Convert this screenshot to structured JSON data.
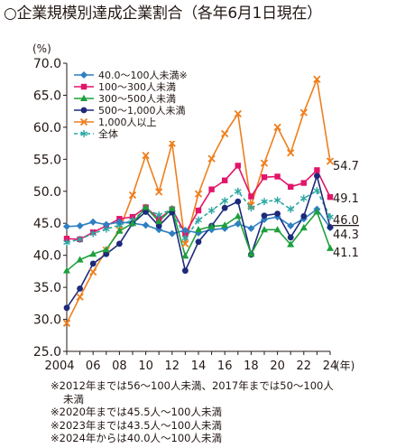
{
  "page_title": "○企業規模別達成企業割合（各年6月1日現在）",
  "notes": [
    "※2012年までは56～100人未満、2017年までは50～100人",
    "未満",
    "※2020年までは45.5人～100人未満",
    "※2023年までは43.5人～100人未満",
    "※2024年からは40.0人～100人未満"
  ],
  "chart_data": {
    "type": "line",
    "ylabel": "(%)",
    "xlabel_unit": "(年)",
    "ylim": [
      25.0,
      70.0
    ],
    "yticks": [
      "25.0",
      "30.0",
      "35.0",
      "40.0",
      "45.0",
      "50.0",
      "55.0",
      "60.0",
      "65.0",
      "70.0"
    ],
    "x": [
      2004,
      2005,
      2006,
      2007,
      2008,
      2009,
      2010,
      2011,
      2012,
      2013,
      2014,
      2015,
      2016,
      2017,
      2018,
      2019,
      2020,
      2021,
      2022,
      2023,
      2024
    ],
    "xtick_labels": [
      "2004",
      "06",
      "08",
      "10",
      "12",
      "14",
      "16",
      "18",
      "20",
      "22",
      "24"
    ],
    "series": [
      {
        "name": "40.0～100人未満※",
        "marker": "diamond",
        "color": "#2E7FC2",
        "values": [
          44.5,
          44.6,
          45.2,
          44.8,
          45.2,
          45.0,
          44.7,
          44.0,
          43.4,
          43.9,
          43.5,
          44.0,
          44.2,
          44.9,
          44.2,
          45.6,
          46.0,
          44.6,
          45.7,
          47.2,
          44.3
        ]
      },
      {
        "name": "100～300人未満",
        "marker": "square",
        "color": "#E3156A",
        "values": [
          42.6,
          42.5,
          43.6,
          44.6,
          45.7,
          46.0,
          47.5,
          45.7,
          47.2,
          43.4,
          47.0,
          50.3,
          51.7,
          54.0,
          49.2,
          52.2,
          52.3,
          50.7,
          51.3,
          53.3,
          49.1
        ]
      },
      {
        "name": "300～500人未満",
        "marker": "triangle",
        "color": "#1EA03C",
        "values": [
          37.6,
          39.3,
          40.2,
          40.9,
          43.8,
          45.0,
          47.5,
          45.3,
          47.3,
          39.9,
          44.0,
          44.5,
          44.7,
          46.1,
          40.2,
          44.0,
          44.0,
          41.7,
          44.3,
          46.8,
          41.1
        ]
      },
      {
        "name": "500～1,000人未満",
        "marker": "circle",
        "color": "#1D2A7A",
        "values": [
          31.8,
          34.8,
          38.7,
          40.2,
          41.8,
          45.0,
          46.8,
          44.6,
          46.7,
          37.6,
          42.1,
          44.6,
          47.4,
          48.4,
          40.1,
          46.2,
          46.5,
          42.8,
          46.1,
          52.4,
          44.4
        ]
      },
      {
        "name": "1,000人以上",
        "marker": "x",
        "color": "#EE7F1D",
        "values": [
          29.4,
          33.5,
          37.4,
          40.8,
          44.0,
          49.4,
          55.6,
          49.9,
          57.5,
          41.8,
          49.6,
          55.1,
          59.0,
          62.1,
          47.8,
          54.4,
          60.0,
          56.0,
          62.3,
          67.5,
          54.7
        ]
      },
      {
        "name": "全体",
        "marker": "asterisk",
        "color": "#2BA7A3",
        "dashed": true,
        "values": [
          42.0,
          42.5,
          43.4,
          44.1,
          44.7,
          45.5,
          47.2,
          46.3,
          47.2,
          42.7,
          45.5,
          47.0,
          48.5,
          50.0,
          47.4,
          48.4,
          48.6,
          47.2,
          48.9,
          50.1,
          46.0
        ]
      }
    ],
    "end_labels": [
      "54.7",
      "49.1",
      "46.0",
      "44.3",
      "41.1"
    ],
    "end_label_values": [
      54.7,
      49.1,
      46.0,
      44.3,
      41.1
    ],
    "end_label_underlined": [
      false,
      false,
      true,
      false,
      false
    ],
    "legend_position": "top-left",
    "grid": false
  }
}
